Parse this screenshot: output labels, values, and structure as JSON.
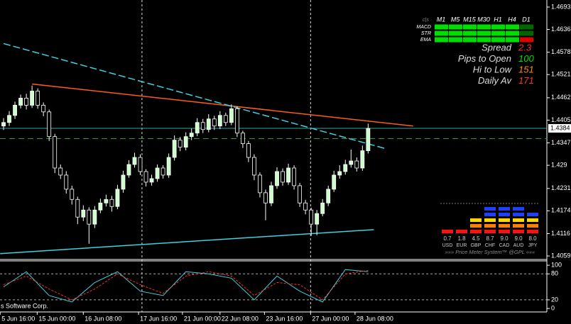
{
  "chart_data": [
    {
      "type": "candlestick",
      "xlim": [
        -0.625,
        95.375
      ],
      "ylim": [
        1.405,
        1.4711
      ],
      "yticks": [
        1.4693,
        1.4636,
        1.4578,
        1.4521,
        1.4462,
        1.4405,
        1.4347,
        1.429,
        1.4231,
        1.4174,
        1.4116,
        1.4059
      ],
      "xticks": [
        {
          "value": -0.6,
          "label": "5 Jun 16:00"
        },
        {
          "value": 5.9,
          "label": "15 Jun 00:00"
        },
        {
          "value": 14,
          "label": "16 Jun 08:00"
        },
        {
          "value": 23.7,
          "label": "17 Jun 16:00"
        },
        {
          "value": 31.4,
          "label": "21 Jun 00:00"
        },
        {
          "value": 38,
          "label": "22 Jun 08:00"
        },
        {
          "value": 45.8,
          "label": "23 Jun 16:00"
        },
        {
          "value": 53.9,
          "label": "27 Jun 00:00"
        },
        {
          "value": 61.7,
          "label": "28 Jun 08:00"
        }
      ],
      "vlines": [
        24.3,
        53.9
      ],
      "current_price": 1.4384,
      "bull_color": "#ccffcc",
      "bear_color": "#000000",
      "wick_color": "#ffffff",
      "ohlc": {
        "open": [
          1.439,
          1.4399,
          1.4417,
          1.4443,
          1.4461,
          1.4443,
          1.4479,
          1.4443,
          1.4426,
          1.4363,
          1.4283,
          1.4265,
          1.4229,
          1.4203,
          1.4158,
          1.4176,
          1.414,
          1.4176,
          1.4194,
          1.4203,
          1.4185,
          1.4229,
          1.4265,
          1.4292,
          1.431,
          1.4274,
          1.4247,
          1.4256,
          1.4283,
          1.4265,
          1.431,
          1.4354,
          1.4336,
          1.4363,
          1.4372,
          1.4399,
          1.4381,
          1.4408,
          1.439,
          1.4417,
          1.4399,
          1.4434,
          1.4372,
          1.4345,
          1.431,
          1.4265,
          1.422,
          1.4194,
          1.4238,
          1.4274,
          1.4247,
          1.4283,
          1.4238,
          1.4194,
          1.4176,
          1.414,
          1.4167,
          1.4194,
          1.4229,
          1.4265,
          1.4274,
          1.4292,
          1.4301,
          1.4283,
          1.4327
        ],
        "high": [
          1.441,
          1.4428,
          1.4452,
          1.447,
          1.4472,
          1.4493,
          1.4486,
          1.445,
          1.4432,
          1.437,
          1.4292,
          1.4275,
          1.4238,
          1.421,
          1.4188,
          1.4183,
          1.4186,
          1.4205,
          1.4215,
          1.4212,
          1.424,
          1.4276,
          1.4303,
          1.4322,
          1.4318,
          1.428,
          1.4266,
          1.4292,
          1.429,
          1.432,
          1.4366,
          1.4362,
          1.4374,
          1.4384,
          1.441,
          1.4408,
          1.442,
          1.4416,
          1.4428,
          1.4424,
          1.4445,
          1.444,
          1.4378,
          1.4352,
          1.4318,
          1.4272,
          1.4228,
          1.4248,
          1.4285,
          1.4282,
          1.4294,
          1.429,
          1.4245,
          1.4202,
          1.4182,
          1.4176,
          1.4204,
          1.4238,
          1.4276,
          1.429,
          1.4304,
          1.433,
          1.431,
          1.434,
          1.4396
        ],
        "low": [
          1.438,
          1.439,
          1.4408,
          1.4435,
          1.4432,
          1.4436,
          1.4434,
          1.4415,
          1.4352,
          1.427,
          1.4255,
          1.4218,
          1.419,
          1.414,
          1.4148,
          1.409,
          1.413,
          1.4168,
          1.4185,
          1.4172,
          1.4178,
          1.422,
          1.4258,
          1.4284,
          1.4265,
          1.4236,
          1.4238,
          1.4248,
          1.4256,
          1.4258,
          1.4302,
          1.4326,
          1.4328,
          1.4354,
          1.4364,
          1.4372,
          1.4374,
          1.438,
          1.4382,
          1.439,
          1.4392,
          1.4362,
          1.4334,
          1.4298,
          1.4252,
          1.4208,
          1.415,
          1.4186,
          1.423,
          1.4238,
          1.424,
          1.4228,
          1.4184,
          1.4165,
          1.411,
          1.4112,
          1.416,
          1.4186,
          1.4222,
          1.4256,
          1.4266,
          1.4284,
          1.4274,
          1.4276,
          1.432
        ],
        "close": [
          1.4399,
          1.4417,
          1.4443,
          1.4461,
          1.4443,
          1.4479,
          1.4443,
          1.4426,
          1.4363,
          1.4283,
          1.4265,
          1.4229,
          1.4203,
          1.4158,
          1.4176,
          1.414,
          1.4176,
          1.4194,
          1.4203,
          1.4185,
          1.4229,
          1.4265,
          1.4292,
          1.431,
          1.4274,
          1.4247,
          1.4256,
          1.4283,
          1.4265,
          1.431,
          1.4354,
          1.4336,
          1.4363,
          1.4372,
          1.4399,
          1.4381,
          1.4408,
          1.439,
          1.4417,
          1.4399,
          1.4434,
          1.4372,
          1.4345,
          1.431,
          1.4265,
          1.422,
          1.4194,
          1.4238,
          1.4274,
          1.4247,
          1.4283,
          1.4238,
          1.4194,
          1.4176,
          1.414,
          1.4167,
          1.4194,
          1.4229,
          1.4265,
          1.4274,
          1.4292,
          1.4301,
          1.4283,
          1.4327,
          1.4384
        ]
      },
      "lines": [
        {
          "color": "#ff5a1e",
          "dash": false,
          "x": [
            5,
            71.9
          ],
          "y": [
            1.4497,
            1.439
          ]
        },
        {
          "color": "#40d0e0",
          "dash": true,
          "x": [
            0,
            66.9
          ],
          "y": [
            1.46,
            1.4333
          ]
        },
        {
          "color": "#40d0e0",
          "dash": false,
          "x": [
            -0.6,
            65
          ],
          "y": [
            1.4065,
            1.4126
          ]
        }
      ],
      "levels": [
        {
          "value": 1.4384,
          "color": "#3aa0a0",
          "dash": false
        },
        {
          "value": 1.4358,
          "color": "#2e9a2e",
          "dash": true
        }
      ]
    },
    {
      "type": "line",
      "ylim": [
        -8,
        110
      ],
      "yticks": [
        100,
        80,
        20,
        0
      ],
      "levels": [
        80,
        20
      ],
      "x": [
        0,
        4,
        8,
        12,
        16,
        20,
        24,
        28,
        32,
        36,
        40,
        44,
        48,
        52,
        56,
        60,
        64
      ],
      "series": [
        {
          "color": "#40d0e0",
          "dash": false,
          "values": [
            50,
            85,
            30,
            15,
            60,
            85,
            40,
            30,
            85,
            80,
            70,
            20,
            75,
            40,
            15,
            90,
            85
          ]
        },
        {
          "color": "#ff2a2a",
          "dash": true,
          "values": [
            55,
            75,
            45,
            20,
            45,
            80,
            55,
            35,
            75,
            85,
            75,
            30,
            60,
            55,
            20,
            80,
            88
          ]
        }
      ],
      "footer": "s Software Corp."
    }
  ],
  "panel": {
    "corner": "c|s",
    "columns": [
      "M1",
      "M5",
      "M15",
      "M30",
      "H1",
      "H4",
      "D1"
    ],
    "rows": [
      {
        "name": "MACD",
        "colors": [
          "#00dd00",
          "#00dd00",
          "#00dd00",
          "#00dd00",
          "#00dd00",
          "#00dd00",
          "#006600"
        ]
      },
      {
        "name": "STR",
        "colors": [
          "#00dd00",
          "#00dd00",
          "#00dd00",
          "#00dd00",
          "#00dd00",
          "#00dd00",
          "#006600"
        ]
      },
      {
        "name": "EMA",
        "colors": [
          "#00dd00",
          "#00dd00",
          "#00dd00",
          "#00dd00",
          "#00dd00",
          "#00dd00",
          "#dd0000"
        ]
      }
    ],
    "stats": [
      {
        "label": "Spread",
        "value": 2.3,
        "color": "#ff3030"
      },
      {
        "label": "Pips to Open",
        "value": 100,
        "color": "#00dd00"
      },
      {
        "label": "Hi to Low",
        "value": 151,
        "color": "#ff8c00"
      },
      {
        "label": "Daily Av",
        "value": 171,
        "color": "#ff3030"
      }
    ]
  },
  "meter": {
    "currencies": [
      "USD",
      "EUR",
      "GBP",
      "CHF",
      "CAD",
      "AUD",
      "JPY"
    ],
    "values": [
      0.7,
      1.8,
      4.5,
      8.7,
      9.0,
      9.0,
      8.0
    ],
    "value_labels": [
      "0.7",
      "1.8",
      "4.5",
      "8.7",
      "9.0",
      "9.0",
      "8.0"
    ],
    "block_colors": [
      "#ff1010",
      "#ff8000",
      "#ffd700",
      "#2040ff",
      "#2040ff"
    ],
    "note": "»»» Price Meter System™ @GPL «««"
  }
}
